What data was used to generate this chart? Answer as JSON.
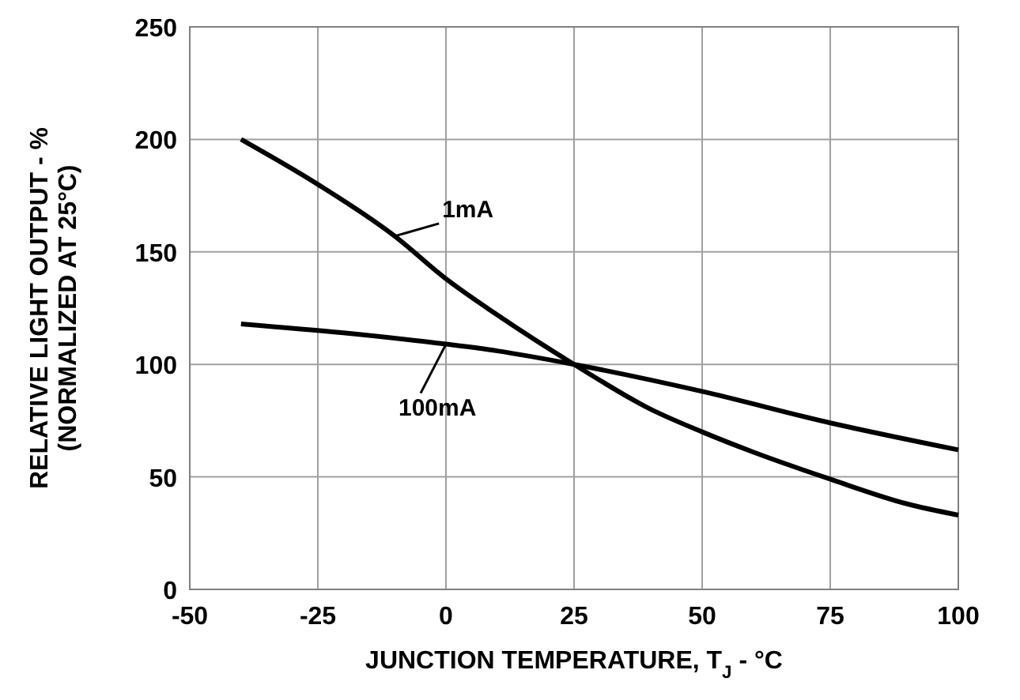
{
  "chart_data": {
    "type": "line",
    "xlabel": "JUNCTION TEMPERATURE, T$_{J}$ - °C",
    "ylabel": "RELATIVE LIGHT OUTPUT - %\n(NORMALIZED AT 25°C)",
    "xlim": [
      -50,
      100
    ],
    "xticks": [
      -50,
      -25,
      0,
      25,
      50,
      75,
      100
    ],
    "ylim": [
      0,
      250
    ],
    "yticks": [
      0,
      50,
      100,
      150,
      200,
      250
    ],
    "grid": true,
    "marker": "none",
    "line_style": "solid",
    "series": [
      {
        "name": "1mA",
        "color": "#000000",
        "x": [
          -40,
          -25,
          -10,
          0,
          10,
          25,
          40,
          50,
          60,
          75,
          90,
          100
        ],
        "values": [
          200,
          180,
          157,
          138,
          122,
          100,
          80,
          70,
          61,
          49,
          38,
          33
        ]
      },
      {
        "name": "100mA",
        "color": "#000000",
        "x": [
          -40,
          -20,
          0,
          10,
          25,
          50,
          75,
          100
        ],
        "values": [
          118,
          114,
          109,
          106,
          100,
          88,
          74,
          62
        ]
      }
    ]
  }
}
